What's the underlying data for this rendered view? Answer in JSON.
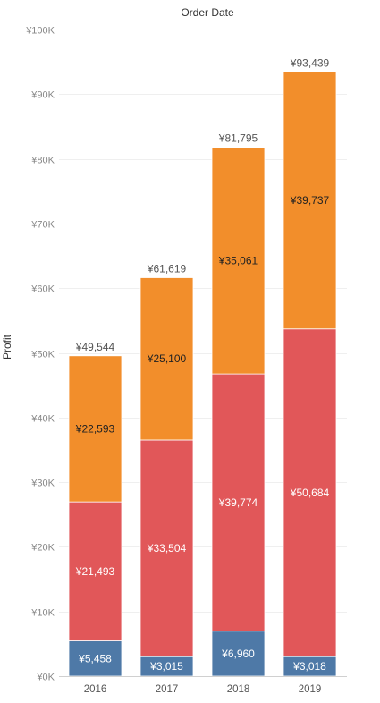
{
  "chart_data": {
    "type": "bar",
    "stacked": true,
    "title": "Order Date",
    "ylabel": "Profit",
    "xlabel": "",
    "categories": [
      "2016",
      "2017",
      "2018",
      "2019"
    ],
    "ylim": [
      0,
      100000
    ],
    "yticks": [
      0,
      10000,
      20000,
      30000,
      40000,
      50000,
      60000,
      70000,
      80000,
      90000,
      100000
    ],
    "ytick_labels": [
      "¥0K",
      "¥10K",
      "¥20K",
      "¥30K",
      "¥40K",
      "¥50K",
      "¥60K",
      "¥70K",
      "¥80K",
      "¥90K",
      "¥100K"
    ],
    "grid": true,
    "series": [
      {
        "color": "#4e79a7",
        "values": [
          5458,
          3015,
          6960,
          3018
        ],
        "labels": [
          "¥5,458",
          "¥3,015",
          "¥6,960",
          "¥3,018"
        ]
      },
      {
        "color": "#e15759",
        "values": [
          21493,
          33504,
          39774,
          50684
        ],
        "labels": [
          "¥21,493",
          "¥33,504",
          "¥39,774",
          "¥50,684"
        ]
      },
      {
        "color": "#f28e2b",
        "values": [
          22593,
          25100,
          35061,
          39737
        ],
        "labels": [
          "¥22,593",
          "¥25,100",
          "¥35,061",
          "¥39,737"
        ]
      }
    ],
    "totals": [
      49544,
      61619,
      81795,
      93439
    ],
    "total_labels": [
      "¥49,544",
      "¥61,619",
      "¥81,795",
      "¥93,439"
    ]
  }
}
